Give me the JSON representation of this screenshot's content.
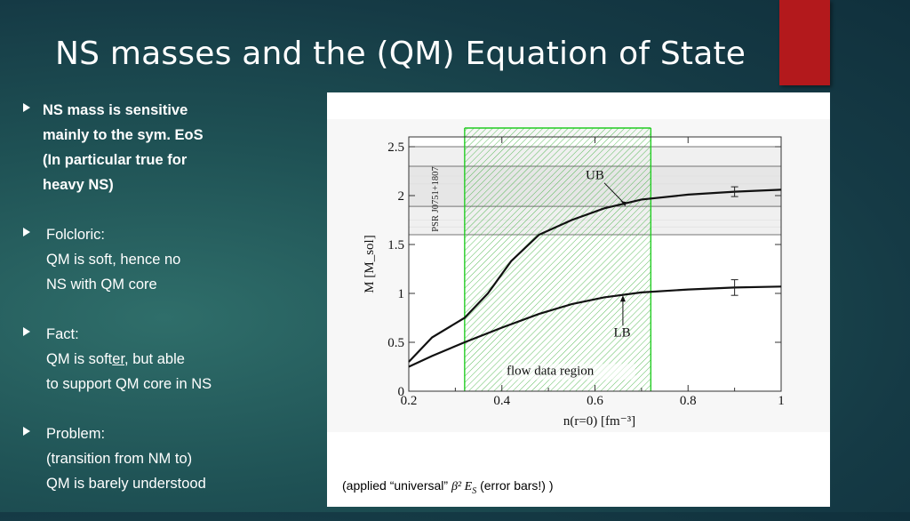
{
  "slide": {
    "title": "NS masses and the (QM) Equation of State"
  },
  "bullets": [
    {
      "lines": [
        "NS mass is sensitive",
        "mainly to the sym. EoS",
        "(In particular true for",
        "heavy NS)"
      ],
      "bold": true
    },
    {
      "lines": [
        "Folcloric:",
        "QM is soft, hence no",
        "NS with QM core"
      ],
      "bold": false
    },
    {
      "lines_fact": {
        "l1": "Fact:",
        "l2_pre": "QM is soft",
        "l2_u": "er",
        "l2_post": ", but able",
        "l3": "to support QM core in NS"
      }
    },
    {
      "lines": [
        "Problem:",
        "(transition from NM to)",
        "QM is barely understood"
      ],
      "bold": false
    }
  ],
  "figure": {
    "caption_pre": "(applied “universal” ",
    "caption_math": "β² E",
    "caption_sub": "S",
    "caption_post": " (error bars!) )"
  },
  "chart_data": {
    "type": "line",
    "xlabel": "n(r=0)  [fm⁻³]",
    "ylabel": "M  [M_sol]",
    "xlim": [
      0.2,
      1.0
    ],
    "ylim": [
      0,
      2.6
    ],
    "x_ticks": [
      "0.2",
      "0.4",
      "0.6",
      "0.8",
      "1"
    ],
    "y_ticks": [
      "0",
      "0.5",
      "1",
      "1.5",
      "2",
      "2.5"
    ],
    "series": [
      {
        "name": "UB",
        "x": [
          0.2,
          0.25,
          0.32,
          0.37,
          0.42,
          0.48,
          0.55,
          0.62,
          0.7,
          0.8,
          0.9,
          1.0
        ],
        "y": [
          0.3,
          0.55,
          0.75,
          1.0,
          1.33,
          1.6,
          1.75,
          1.87,
          1.96,
          2.01,
          2.04,
          2.06
        ]
      },
      {
        "name": "LB",
        "x": [
          0.2,
          0.25,
          0.32,
          0.4,
          0.48,
          0.55,
          0.62,
          0.7,
          0.8,
          0.9,
          1.0
        ],
        "y": [
          0.25,
          0.36,
          0.5,
          0.65,
          0.79,
          0.89,
          0.96,
          1.01,
          1.04,
          1.06,
          1.07
        ]
      }
    ],
    "error_bars": [
      {
        "x": 0.9,
        "y": 2.04,
        "err": 0.05
      },
      {
        "x": 0.9,
        "y": 1.06,
        "err": 0.08
      }
    ],
    "flow_region": {
      "x": [
        0.32,
        0.72
      ],
      "label": "flow data region",
      "color": "#22cc22"
    },
    "psr_band": {
      "y_inner": [
        1.89,
        2.3
      ],
      "y_outer": [
        1.6,
        2.5
      ],
      "label": "PSR J0751+1807"
    },
    "annotations": [
      "UB",
      "LB"
    ],
    "grid": false
  }
}
